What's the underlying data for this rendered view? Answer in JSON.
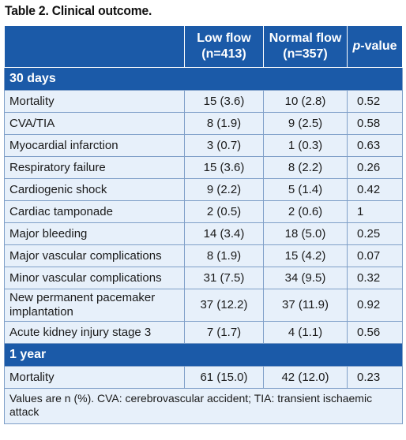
{
  "title": "Table 2. Clinical outcome.",
  "header": {
    "col1": "",
    "low_flow_line1": "Low flow",
    "low_flow_line2": "(n=413)",
    "normal_flow_line1": "Normal flow",
    "normal_flow_line2": "(n=357)",
    "pvalue_italic": "p",
    "pvalue_rest": "-value"
  },
  "sections": [
    {
      "label": "30 days",
      "rows": [
        {
          "outcome": "Mortality",
          "low": "15 (3.6)",
          "normal": "10 (2.8)",
          "p": "0.52"
        },
        {
          "outcome": "CVA/TIA",
          "low": "8 (1.9)",
          "normal": "9 (2.5)",
          "p": "0.58"
        },
        {
          "outcome": "Myocardial infarction",
          "low": "3 (0.7)",
          "normal": "1 (0.3)",
          "p": "0.63"
        },
        {
          "outcome": "Respiratory failure",
          "low": "15 (3.6)",
          "normal": "8 (2.2)",
          "p": "0.26"
        },
        {
          "outcome": "Cardiogenic shock",
          "low": "9 (2.2)",
          "normal": "5 (1.4)",
          "p": "0.42"
        },
        {
          "outcome": "Cardiac tamponade",
          "low": "2 (0.5)",
          "normal": "2 (0.6)",
          "p": "1"
        },
        {
          "outcome": "Major bleeding",
          "low": "14 (3.4)",
          "normal": "18 (5.0)",
          "p": "0.25"
        },
        {
          "outcome": "Major vascular complications",
          "low": "8 (1.9)",
          "normal": "15 (4.2)",
          "p": "0.07"
        },
        {
          "outcome": "Minor vascular complications",
          "low": "31 (7.5)",
          "normal": "34 (9.5)",
          "p": "0.32"
        },
        {
          "outcome": "New permanent pacemaker implantation",
          "low": "37 (12.2)",
          "normal": "37 (11.9)",
          "p": "0.92"
        },
        {
          "outcome": "Acute kidney injury stage 3",
          "low": "7 (1.7)",
          "normal": "4 (1.1)",
          "p": "0.56"
        }
      ]
    },
    {
      "label": "1 year",
      "rows": [
        {
          "outcome": "Mortality",
          "low": "61 (15.0)",
          "normal": "42 (12.0)",
          "p": "0.23"
        }
      ]
    }
  ],
  "footnote": "Values are n (%). CVA: cerebrovascular accident; TIA: transient ischaemic attack"
}
